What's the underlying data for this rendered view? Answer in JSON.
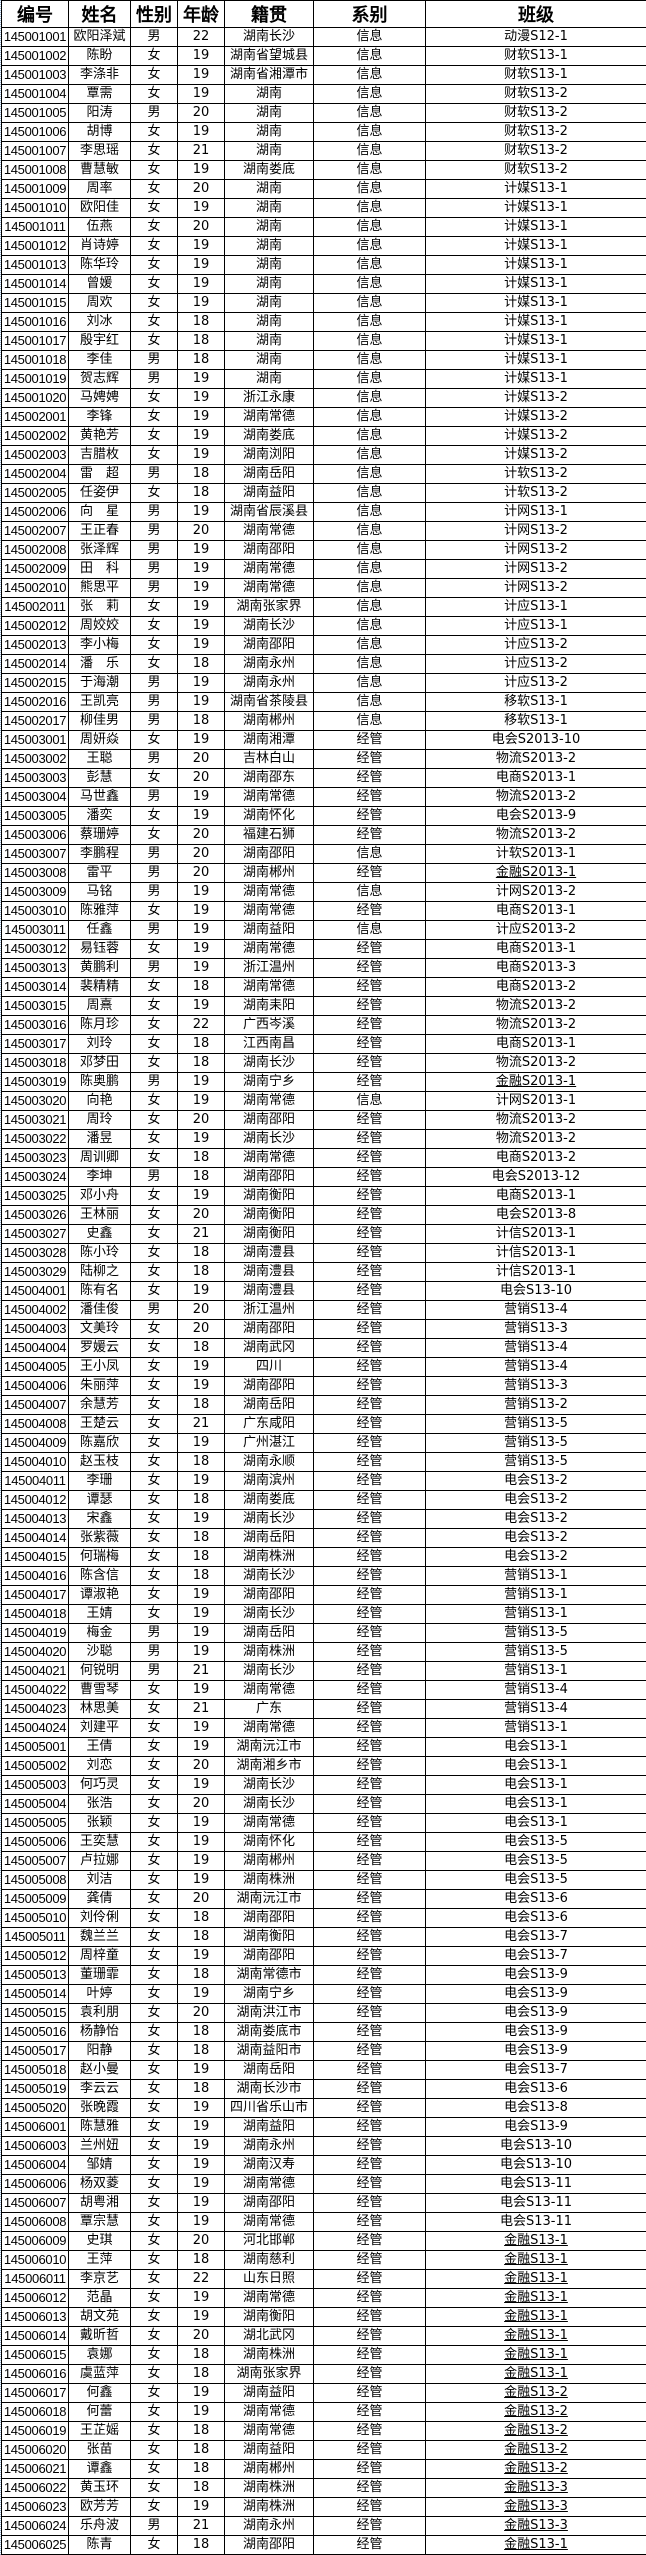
{
  "headers": [
    "编号",
    "姓名",
    "性别",
    "年龄",
    "籍贯",
    "系别",
    "班级"
  ],
  "rows": [
    [
      "145001001",
      "欧阳泽斌",
      "男",
      "22",
      "湖南长沙",
      "信息",
      "动漫S12-1"
    ],
    [
      "145001002",
      "陈盼",
      "女",
      "19",
      "湖南省望城县",
      "信息",
      "财软S13-1"
    ],
    [
      "145001003",
      "李涤非",
      "女",
      "19",
      "湖南省湘潭市",
      "信息",
      "财软S13-1"
    ],
    [
      "145001004",
      "覃需",
      "女",
      "19",
      "湖南",
      "信息",
      "财软S13-2"
    ],
    [
      "145001005",
      "阳涛",
      "男",
      "20",
      "湖南",
      "信息",
      "财软S13-2"
    ],
    [
      "145001006",
      "胡博",
      "女",
      "19",
      "湖南",
      "信息",
      "财软S13-2"
    ],
    [
      "145001007",
      "李思瑶",
      "女",
      "21",
      "湖南",
      "信息",
      "财软S13-2"
    ],
    [
      "145001008",
      "曹慧敏",
      "女",
      "19",
      "湖南娄底",
      "信息",
      "财软S13-2"
    ],
    [
      "145001009",
      "周率",
      "女",
      "20",
      "湖南",
      "信息",
      "计媒S13-1"
    ],
    [
      "145001010",
      "欧阳佳",
      "女",
      "19",
      "湖南",
      "信息",
      "计媒S13-1"
    ],
    [
      "145001011",
      "伍燕",
      "女",
      "20",
      "湖南",
      "信息",
      "计媒S13-1"
    ],
    [
      "145001012",
      "肖诗婷",
      "女",
      "19",
      "湖南",
      "信息",
      "计媒S13-1"
    ],
    [
      "145001013",
      "陈华玲",
      "女",
      "19",
      "湖南",
      "信息",
      "计媒S13-1"
    ],
    [
      "145001014",
      "曾媛",
      "女",
      "19",
      "湖南",
      "信息",
      "计媒S13-1"
    ],
    [
      "145001015",
      "周欢",
      "女",
      "19",
      "湖南",
      "信息",
      "计媒S13-1"
    ],
    [
      "145001016",
      "刘冰",
      "女",
      "18",
      "湖南",
      "信息",
      "计媒S13-1"
    ],
    [
      "145001017",
      "殷宇红",
      "女",
      "18",
      "湖南",
      "信息",
      "计媒S13-1"
    ],
    [
      "145001018",
      "李佳",
      "男",
      "18",
      "湖南",
      "信息",
      "计媒S13-1"
    ],
    [
      "145001019",
      "贺志辉",
      "男",
      "19",
      "湖南",
      "信息",
      "计媒S13-1"
    ],
    [
      "145001020",
      "马娉娉",
      "女",
      "19",
      "浙江永康",
      "信息",
      "计媒S13-2"
    ],
    [
      "145002001",
      "李锋",
      "女",
      "19",
      "湖南常德",
      "信息",
      "计媒S13-2"
    ],
    [
      "145002002",
      "黄艳芳",
      "女",
      "19",
      "湖南娄底",
      "信息",
      "计媒S13-2"
    ],
    [
      "145002003",
      "吉腊枚",
      "女",
      "19",
      "湖南浏阳",
      "信息",
      "计媒S13-2"
    ],
    [
      "145002004",
      "雷　超",
      "男",
      "18",
      "湖南岳阳",
      "信息",
      "计软S13-2"
    ],
    [
      "145002005",
      "任姿伊",
      "女",
      "18",
      "湖南益阳",
      "信息",
      "计软S13-2"
    ],
    [
      "145002006",
      "向　星",
      "男",
      "19",
      "湖南省辰溪县",
      "信息",
      "计网S13-1"
    ],
    [
      "145002007",
      "王正春",
      "男",
      "20",
      "湖南常德",
      "信息",
      "计网S13-2"
    ],
    [
      "145002008",
      "张泽辉",
      "男",
      "19",
      "湖南邵阳",
      "信息",
      "计网S13-2"
    ],
    [
      "145002009",
      "田　科",
      "男",
      "19",
      "湖南常德",
      "信息",
      "计网S13-2"
    ],
    [
      "145002010",
      "熊思平",
      "男",
      "19",
      "湖南常德",
      "信息",
      "计网S13-2"
    ],
    [
      "145002011",
      "张　莉",
      "女",
      "19",
      "湖南张家界",
      "信息",
      "计应S13-1"
    ],
    [
      "145002012",
      "周姣姣",
      "女",
      "19",
      "湖南长沙",
      "信息",
      "计应S13-1"
    ],
    [
      "145002013",
      "李小梅",
      "女",
      "19",
      "湖南邵阳",
      "信息",
      "计应S13-2"
    ],
    [
      "145002014",
      "潘　乐",
      "女",
      "18",
      "湖南永州",
      "信息",
      "计应S13-2"
    ],
    [
      "145002015",
      "于海潮",
      "男",
      "19",
      "湖南永州",
      "信息",
      "计应S13-2"
    ],
    [
      "145002016",
      "王凯亮",
      "男",
      "19",
      "湖南省茶陵县",
      "信息",
      "移软S13-1"
    ],
    [
      "145002017",
      "柳佳男",
      "男",
      "18",
      "湖南郴州",
      "信息",
      "移软S13-1"
    ],
    [
      "145003001",
      "周妍焱",
      "女",
      "19",
      "湖南湘潭",
      "经管",
      "电会S2013-10"
    ],
    [
      "145003002",
      "王聪",
      "男",
      "20",
      "吉林白山",
      "经管",
      "物流S2013-2"
    ],
    [
      "145003003",
      "彭慧",
      "女",
      "20",
      "湖南邵东",
      "经管",
      "电商S2013-1"
    ],
    [
      "145003004",
      "马世鑫",
      "男",
      "19",
      "湖南常德",
      "经管",
      "物流S2013-2"
    ],
    [
      "145003005",
      "潘奕",
      "女",
      "19",
      "湖南怀化",
      "经管",
      "电会S2013-9"
    ],
    [
      "145003006",
      "蔡珊婷",
      "女",
      "20",
      "福建石狮",
      "经管",
      "物流S2013-2"
    ],
    [
      "145003007",
      "李鹏程",
      "男",
      "20",
      "湖南邵阳",
      "信息",
      "计软S2013-1"
    ],
    [
      "145003008",
      "雷平",
      "男",
      "20",
      "湖南郴州",
      "经管",
      "金融S2013-1"
    ],
    [
      "145003009",
      "马铭",
      "男",
      "19",
      "湖南常德",
      "信息",
      "计网S2013-2"
    ],
    [
      "145003010",
      "陈雅萍",
      "女",
      "19",
      "湖南常德",
      "经管",
      "电商S2013-1"
    ],
    [
      "145003011",
      "任鑫",
      "男",
      "19",
      "湖南益阳",
      "信息",
      "计应S2013-2"
    ],
    [
      "145003012",
      "易钰蓉",
      "女",
      "19",
      "湖南常德",
      "经管",
      "电商S2013-1"
    ],
    [
      "145003013",
      "黄鹏利",
      "男",
      "19",
      "浙江温州",
      "经管",
      "电商S2013-3"
    ],
    [
      "145003014",
      "裴精精",
      "女",
      "18",
      "湖南常德",
      "经管",
      "电商S2013-2"
    ],
    [
      "145003015",
      "周熹",
      "女",
      "19",
      "湖南耒阳",
      "经管",
      "物流S2013-2"
    ],
    [
      "145003016",
      "陈月珍",
      "女",
      "22",
      "广西岑溪",
      "经管",
      "物流S2013-2"
    ],
    [
      "145003017",
      "刘玲",
      "女",
      "18",
      "江西南昌",
      "经管",
      "电商S2013-1"
    ],
    [
      "145003018",
      "邓梦田",
      "女",
      "18",
      "湖南长沙",
      "经管",
      "物流S2013-2"
    ],
    [
      "145003019",
      "陈奥鹏",
      "男",
      "19",
      "湖南宁乡",
      "经管",
      "金融S2013-1"
    ],
    [
      "145003020",
      "向艳",
      "女",
      "19",
      "湖南常德",
      "信息",
      "计网S2013-1"
    ],
    [
      "145003021",
      "周玲",
      "女",
      "20",
      "湖南邵阳",
      "经管",
      "物流S2013-2"
    ],
    [
      "145003022",
      "潘昱",
      "女",
      "19",
      "湖南长沙",
      "经管",
      "物流S2013-2"
    ],
    [
      "145003023",
      "周训卿",
      "女",
      "18",
      "湖南常德",
      "经管",
      "电商S2013-2"
    ],
    [
      "145003024",
      "李坤",
      "男",
      "18",
      "湖南邵阳",
      "经管",
      "电会S2013-12"
    ],
    [
      "145003025",
      "邓小舟",
      "女",
      "19",
      "湖南衡阳",
      "经管",
      "电商S2013-1"
    ],
    [
      "145003026",
      "王林丽",
      "女",
      "20",
      "湖南衡阳",
      "经管",
      "电会S2013-8"
    ],
    [
      "145003027",
      "史鑫",
      "女",
      "21",
      "湖南衡阳",
      "经管",
      "计信S2013-1"
    ],
    [
      "145003028",
      "陈小玲",
      "女",
      "18",
      "湖南澧县",
      "经管",
      "计信S2013-1"
    ],
    [
      "145003029",
      "陆柳之",
      "女",
      "18",
      "湖南澧县",
      "经管",
      "计信S2013-1"
    ],
    [
      "145004001",
      "陈有名",
      "女",
      "19",
      "湖南澧县",
      "经管",
      "电会S13-10"
    ],
    [
      "145004002",
      "潘佳俊",
      "男",
      "20",
      "浙江温州",
      "经管",
      "营销S13-4"
    ],
    [
      "145004003",
      "文美玲",
      "女",
      "20",
      "湖南邵阳",
      "经管",
      "营销S13-3"
    ],
    [
      "145004004",
      "罗媛云",
      "女",
      "18",
      "湖南武冈",
      "经管",
      "营销S13-4"
    ],
    [
      "145004005",
      "王小凤",
      "女",
      "19",
      "四川",
      "经管",
      "营销S13-4"
    ],
    [
      "145004006",
      "朱丽萍",
      "女",
      "19",
      "湖南邵阳",
      "经管",
      "营销S13-3"
    ],
    [
      "145004007",
      "余慧芳",
      "女",
      "18",
      "湖南岳阳",
      "经管",
      "营销S13-2"
    ],
    [
      "145004008",
      "王楚云",
      "女",
      "21",
      "广东咸阳",
      "经管",
      "营销S13-5"
    ],
    [
      "145004009",
      "陈嘉欣",
      "女",
      "19",
      "广州湛江",
      "经管",
      "营销S13-5"
    ],
    [
      "145004010",
      "赵玉枝",
      "女",
      "18",
      "湖南永顺",
      "经管",
      "营销S13-5"
    ],
    [
      "145004011",
      "李珊",
      "女",
      "19",
      "湖南滨州",
      "经管",
      "电会S13-2"
    ],
    [
      "145004012",
      "谭瑟",
      "女",
      "18",
      "湖南娄底",
      "经管",
      "电会S13-2"
    ],
    [
      "145004013",
      "宋鑫",
      "女",
      "19",
      "湖南长沙",
      "经管",
      "电会S13-2"
    ],
    [
      "145004014",
      "张紫薇",
      "女",
      "18",
      "湖南岳阳",
      "经管",
      "电会S13-2"
    ],
    [
      "145004015",
      "何瑞梅",
      "女",
      "18",
      "湖南株洲",
      "经管",
      "电会S13-2"
    ],
    [
      "145004016",
      "陈含信",
      "女",
      "18",
      "湖南长沙",
      "经管",
      "营销S13-1"
    ],
    [
      "145004017",
      "谭淑艳",
      "女",
      "19",
      "湖南邵阳",
      "经管",
      "营销S13-1"
    ],
    [
      "145004018",
      "王婧",
      "女",
      "19",
      "湖南长沙",
      "经管",
      "营销S13-1"
    ],
    [
      "145004019",
      "梅金",
      "男",
      "19",
      "湖南岳阳",
      "经管",
      "营销S13-5"
    ],
    [
      "145004020",
      "沙聪",
      "男",
      "19",
      "湖南株洲",
      "经管",
      "营销S13-5"
    ],
    [
      "145004021",
      "何锐明",
      "男",
      "21",
      "湖南长沙",
      "经管",
      "营销S13-1"
    ],
    [
      "145004022",
      "曹雪琴",
      "女",
      "19",
      "湖南常德",
      "经管",
      "营销S13-4"
    ],
    [
      "145004023",
      "林思美",
      "女",
      "21",
      "广东",
      "经管",
      "营销S13-4"
    ],
    [
      "145004024",
      "刘建平",
      "女",
      "19",
      "湖南常德",
      "经管",
      "营销S13-1"
    ],
    [
      "145005001",
      "王倩",
      "女",
      "19",
      "湖南沅江市",
      "经管",
      "电会S13-1"
    ],
    [
      "145005002",
      "刘恋",
      "女",
      "20",
      "湖南湘乡市",
      "经管",
      "电会S13-1"
    ],
    [
      "145005003",
      "何巧灵",
      "女",
      "19",
      "湖南长沙",
      "经管",
      "电会S13-1"
    ],
    [
      "145005004",
      "张浩",
      "女",
      "20",
      "湖南长沙",
      "经管",
      "电会S13-1"
    ],
    [
      "145005005",
      "张颖",
      "女",
      "19",
      "湖南常德",
      "经管",
      "电会S13-1"
    ],
    [
      "145005006",
      "王奕慧",
      "女",
      "19",
      "湖南怀化",
      "经管",
      "电会S13-5"
    ],
    [
      "145005007",
      "卢拉娜",
      "女",
      "19",
      "湖南郴州",
      "经管",
      "电会S13-5"
    ],
    [
      "145005008",
      "刘洁",
      "女",
      "19",
      "湖南株洲",
      "经管",
      "电会S13-5"
    ],
    [
      "145005009",
      "龚倩",
      "女",
      "20",
      "湖南沅江市",
      "经管",
      "电会S13-6"
    ],
    [
      "145005010",
      "刘伶俐",
      "女",
      "18",
      "湖南邵阳",
      "经管",
      "电会S13-6"
    ],
    [
      "145005011",
      "魏兰兰",
      "女",
      "18",
      "湖南衡阳",
      "经管",
      "电会S13-7"
    ],
    [
      "145005012",
      "周梓童",
      "女",
      "19",
      "湖南邵阳",
      "经管",
      "电会S13-7"
    ],
    [
      "145005013",
      "董珊霏",
      "女",
      "18",
      "湖南常德市",
      "经管",
      "电会S13-9"
    ],
    [
      "145005014",
      "叶婷",
      "女",
      "19",
      "湖南宁乡",
      "经管",
      "电会S13-9"
    ],
    [
      "145005015",
      "袁利朋",
      "女",
      "20",
      "湖南洪江市",
      "经管",
      "电会S13-9"
    ],
    [
      "145005016",
      "杨静怡",
      "女",
      "18",
      "湖南娄底市",
      "经管",
      "电会S13-9"
    ],
    [
      "145005017",
      "阳静",
      "女",
      "18",
      "湖南益阳市",
      "经管",
      "电会S13-9"
    ],
    [
      "145005018",
      "赵小曼",
      "女",
      "19",
      "湖南岳阳",
      "经管",
      "电会S13-7"
    ],
    [
      "145005019",
      "李云云",
      "女",
      "18",
      "湖南长沙市",
      "经管",
      "电会S13-6"
    ],
    [
      "145005020",
      "张晚霞",
      "女",
      "19",
      "四川省乐山市",
      "经管",
      "电会S13-8"
    ],
    [
      "145006001",
      "陈慧雅",
      "女",
      "19",
      "湖南益阳",
      "经管",
      "电会S13-9"
    ],
    [
      "145006003",
      "兰州妞",
      "女",
      "19",
      "湖南永州",
      "经管",
      "电会S13-10"
    ],
    [
      "145006004",
      "邹婧",
      "女",
      "19",
      "湖南汉寿",
      "经管",
      "电会S13-10"
    ],
    [
      "145006006",
      "杨双菱",
      "女",
      "19",
      "湖南常德",
      "经管",
      "电会S13-11"
    ],
    [
      "145006007",
      "胡粤湘",
      "女",
      "19",
      "湖南邵阳",
      "经管",
      "电会S13-11"
    ],
    [
      "145006008",
      "覃宗慧",
      "女",
      "19",
      "湖南常德",
      "经管",
      "电会S13-11"
    ],
    [
      "145006009",
      "史琪",
      "女",
      "20",
      "河北邯郸",
      "经管",
      "金融S13-1"
    ],
    [
      "145006010",
      "王萍",
      "女",
      "18",
      "湖南慈利",
      "经管",
      "金融S13-1"
    ],
    [
      "145006011",
      "李京艺",
      "女",
      "22",
      "山东日照",
      "经管",
      "金融S13-1"
    ],
    [
      "145006012",
      "范晶",
      "女",
      "19",
      "湖南常德",
      "经管",
      "金融S13-1"
    ],
    [
      "145006013",
      "胡文苑",
      "女",
      "19",
      "湖南衡阳",
      "经管",
      "金融S13-1"
    ],
    [
      "145006014",
      "戴昕哲",
      "女",
      "20",
      "湖北武冈",
      "经管",
      "金融S13-1"
    ],
    [
      "145006015",
      "袁娜",
      "女",
      "18",
      "湖南株洲",
      "经管",
      "金融S13-1"
    ],
    [
      "145006016",
      "虞蓝萍",
      "女",
      "18",
      "湖南张家界",
      "经管",
      "金融S13-1"
    ],
    [
      "145006017",
      "何鑫",
      "女",
      "19",
      "湖南益阳",
      "经管",
      "金融S13-2"
    ],
    [
      "145006018",
      "何蕾",
      "女",
      "19",
      "湖南常德",
      "经管",
      "金融S13-2"
    ],
    [
      "145006019",
      "王芷媱",
      "女",
      "18",
      "湖南常德",
      "经管",
      "金融S13-2"
    ],
    [
      "145006020",
      "张苗",
      "女",
      "18",
      "湖南益阳",
      "经管",
      "金融S13-2"
    ],
    [
      "145006021",
      "谭鑫",
      "女",
      "18",
      "湖南郴州",
      "经管",
      "金融S13-2"
    ],
    [
      "145006022",
      "黄玉环",
      "女",
      "18",
      "湖南株洲",
      "经管",
      "金融S13-3"
    ],
    [
      "145006023",
      "欧芳芳",
      "女",
      "19",
      "湖南株洲",
      "经管",
      "金融S13-3"
    ],
    [
      "145006024",
      "乐舟波",
      "男",
      "21",
      "湖南永州",
      "经管",
      "金融S13-3"
    ],
    [
      "145006025",
      "陈青",
      "女",
      "18",
      "湖南邵阳",
      "经管",
      "金融S13-1"
    ]
  ]
}
